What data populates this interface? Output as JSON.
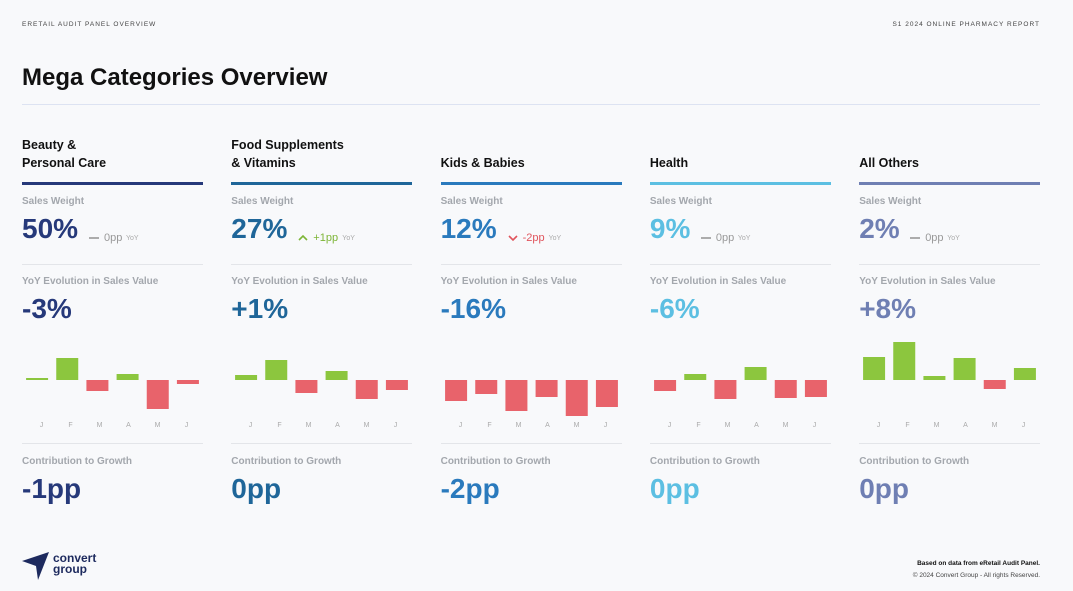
{
  "header": {
    "left": "ERETAIL AUDIT PANEL OVERVIEW",
    "right": "S1 2024 ONLINE PHARMACY REPORT",
    "title": "Mega Categories Overview"
  },
  "positive_color": "#8cc63e",
  "negative_color": "#e8636b",
  "cards": [
    {
      "title": [
        "Beauty &",
        "Personal Care"
      ],
      "color": "#26397a",
      "sales_weight_label": "Sales Weight",
      "sales_weight": "50%",
      "trend": "flat",
      "change": "0pp",
      "change_unit": "YoY",
      "yoy_label": "YoY Evolution in Sales Value",
      "yoy": "-3%",
      "months": [
        "J",
        "F",
        "M",
        "A",
        "M",
        "J"
      ],
      "values": [
        2,
        22,
        -11,
        6,
        -29,
        -4
      ],
      "contribution_label": "Contribution to Growth",
      "contribution": "-1pp"
    },
    {
      "title": [
        "Food Supplements",
        "& Vitamins"
      ],
      "color": "#1f6699",
      "sales_weight_label": "Sales Weight",
      "sales_weight": "27%",
      "trend": "up",
      "change": "+1pp",
      "change_unit": "YoY",
      "yoy_label": "YoY Evolution in Sales Value",
      "yoy": "+1%",
      "months": [
        "J",
        "F",
        "M",
        "A",
        "M",
        "J"
      ],
      "values": [
        5,
        20,
        -13,
        9,
        -19,
        -10
      ],
      "contribution_label": "Contribution to Growth",
      "contribution": "0pp"
    },
    {
      "title": [
        "Kids & Babies"
      ],
      "color": "#2a7abd",
      "sales_weight_label": "Sales Weight",
      "sales_weight": "12%",
      "trend": "down",
      "change": "-2pp",
      "change_unit": "YoY",
      "yoy_label": "YoY Evolution in Sales Value",
      "yoy": "-16%",
      "months": [
        "J",
        "F",
        "M",
        "A",
        "M",
        "J"
      ],
      "values": [
        -21,
        -14,
        -31,
        -17,
        -36,
        -27
      ],
      "contribution_label": "Contribution to Growth",
      "contribution": "-2pp"
    },
    {
      "title": [
        "Health"
      ],
      "color": "#5cbfe2",
      "sales_weight_label": "Sales Weight",
      "sales_weight": "9%",
      "trend": "flat",
      "change": "0pp",
      "change_unit": "YoY",
      "yoy_label": "YoY Evolution in Sales Value",
      "yoy": "-6%",
      "months": [
        "J",
        "F",
        "M",
        "A",
        "M",
        "J"
      ],
      "values": [
        -11,
        6,
        -19,
        13,
        -18,
        -17
      ],
      "contribution_label": "Contribution to Growth",
      "contribution": "0pp"
    },
    {
      "title": [
        "All Others"
      ],
      "color": "#6f7fb3",
      "sales_weight_label": "Sales Weight",
      "sales_weight": "2%",
      "trend": "flat",
      "change": "0pp",
      "change_unit": "YoY",
      "yoy_label": "YoY Evolution in Sales Value",
      "yoy": "+8%",
      "months": [
        "J",
        "F",
        "M",
        "A",
        "M",
        "J"
      ],
      "values": [
        23,
        38,
        4,
        22,
        -9,
        12
      ],
      "contribution_label": "Contribution to Growth",
      "contribution": "0pp"
    }
  ],
  "logo": {
    "line1": "convert",
    "line2": "group"
  },
  "footer": {
    "line1": "Based on data from eRetail Audit Panel.",
    "line2": "© 2024 Convert Group - All rights Reserved."
  }
}
